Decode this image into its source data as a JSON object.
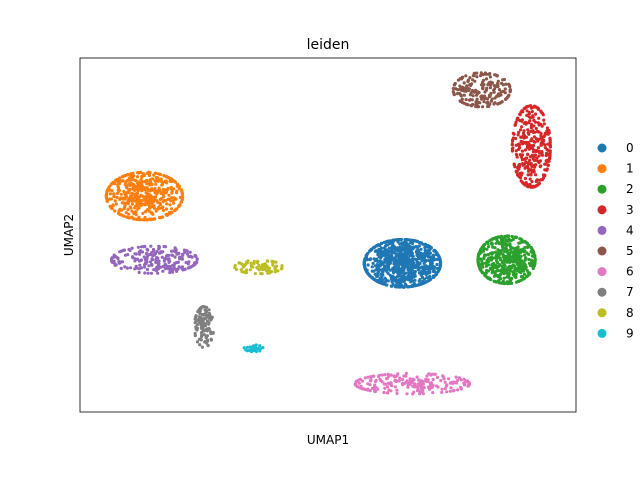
{
  "chart_data": {
    "type": "scatter",
    "title": "leiden",
    "xlabel": "UMAP1",
    "ylabel": "UMAP2",
    "xlim": [
      0,
      100
    ],
    "ylim": [
      0,
      100
    ],
    "grid": false,
    "legend_position": "right",
    "series": [
      {
        "name": "0",
        "color": "#1f77b4",
        "center": [
          65,
          42
        ],
        "spread": [
          8,
          7
        ],
        "count": 820
      },
      {
        "name": "1",
        "color": "#ff7f0e",
        "center": [
          13,
          61
        ],
        "spread": [
          8,
          7
        ],
        "count": 520
      },
      {
        "name": "2",
        "color": "#2ca02c",
        "center": [
          86,
          43
        ],
        "spread": [
          6,
          7
        ],
        "count": 500
      },
      {
        "name": "3",
        "color": "#d62728",
        "center": [
          91,
          75
        ],
        "spread": [
          4,
          12
        ],
        "count": 330
      },
      {
        "name": "4",
        "color": "#9467bd",
        "center": [
          15,
          43
        ],
        "spread": [
          9,
          4
        ],
        "count": 230
      },
      {
        "name": "5",
        "color": "#8c564b",
        "center": [
          81,
          91
        ],
        "spread": [
          6,
          5
        ],
        "count": 200
      },
      {
        "name": "6",
        "color": "#e377c2",
        "center": [
          67,
          8
        ],
        "spread": [
          12,
          3
        ],
        "count": 210
      },
      {
        "name": "7",
        "color": "#7f7f7f",
        "center": [
          25,
          24
        ],
        "spread": [
          2,
          6
        ],
        "count": 110
      },
      {
        "name": "8",
        "color": "#bcbd22",
        "center": [
          36,
          41
        ],
        "spread": [
          5,
          2
        ],
        "count": 75
      },
      {
        "name": "9",
        "color": "#17becf",
        "center": [
          35,
          18
        ],
        "spread": [
          2,
          1
        ],
        "count": 30
      }
    ]
  }
}
